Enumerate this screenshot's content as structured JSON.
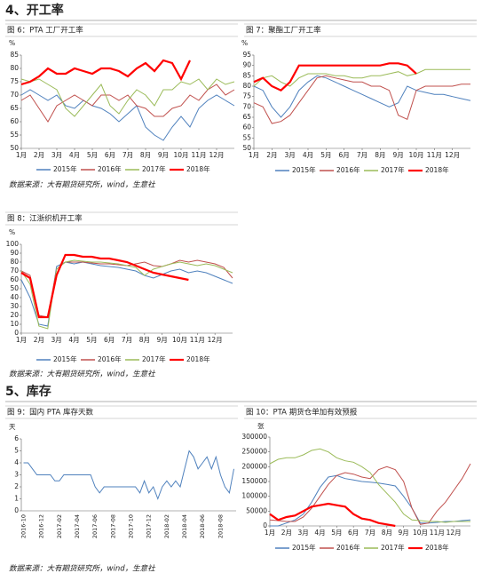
{
  "sections": [
    {
      "heading": "4、开工率"
    },
    {
      "heading": "5、库存"
    }
  ],
  "figures": [
    {
      "title": "图 6：PTA 工厂开工率",
      "source": "数据来源：大有期货研究所，wind，生意社",
      "chart_data": {
        "type": "line",
        "y_label": "%",
        "x": [
          1,
          1.5,
          2,
          2.5,
          3,
          3.5,
          4,
          4.5,
          5,
          5.5,
          6,
          6.5,
          7,
          7.5,
          8,
          8.5,
          9,
          9.5,
          10,
          10.5,
          11,
          11.5,
          12,
          12.5,
          13
        ],
        "xlim": [
          1,
          13
        ],
        "xticks": [
          {
            "value": 1,
            "label": "1月"
          },
          {
            "value": 2,
            "label": "2月"
          },
          {
            "value": 3,
            "label": "3月"
          },
          {
            "value": 4,
            "label": "4月"
          },
          {
            "value": 5,
            "label": "5月"
          },
          {
            "value": 6,
            "label": "6月"
          },
          {
            "value": 7,
            "label": "7月"
          },
          {
            "value": 8,
            "label": "8月"
          },
          {
            "value": 9,
            "label": "9月"
          },
          {
            "value": 10,
            "label": "10月"
          },
          {
            "value": 11,
            "label": "11月"
          },
          {
            "value": 12,
            "label": "12月"
          }
        ],
        "ylim": [
          50,
          85
        ],
        "yticks": [
          50,
          55,
          60,
          65,
          70,
          75,
          80,
          85
        ],
        "series": [
          {
            "name": "2015年",
            "color": "#4f81bd",
            "values": [
              70,
              72,
              70,
              68,
              70,
              66,
              65,
              68,
              66,
              65,
              63,
              60,
              63,
              66,
              58,
              55,
              53,
              58,
              62,
              58,
              65,
              68,
              70,
              68,
              66
            ]
          },
          {
            "name": "2016年",
            "color": "#c0504d",
            "values": [
              68,
              70,
              65,
              60,
              66,
              68,
              70,
              68,
              66,
              70,
              70,
              68,
              70,
              66,
              65,
              62,
              62,
              65,
              66,
              70,
              68,
              72,
              74,
              70,
              72
            ]
          },
          {
            "name": "2017年",
            "color": "#9bbb59",
            "values": [
              76,
              75,
              76,
              74,
              72,
              65,
              62,
              66,
              70,
              74,
              66,
              63,
              68,
              72,
              70,
              66,
              72,
              72,
              75,
              74,
              76,
              72,
              76,
              74,
              75
            ]
          },
          {
            "name": "2018年",
            "color": "#ff0000",
            "values": [
              74,
              75,
              77,
              80,
              78,
              78,
              80,
              79,
              78,
              80,
              80,
              79,
              77,
              80,
              82,
              79,
              83,
              82,
              76,
              83,
              null,
              null,
              null,
              null,
              null
            ]
          }
        ]
      }
    },
    {
      "title": "图 7：聚酯工厂开工率",
      "chart_data": {
        "type": "line",
        "y_label": "%",
        "x": [
          1,
          1.5,
          2,
          2.5,
          3,
          3.5,
          4,
          4.5,
          5,
          5.5,
          6,
          6.5,
          7,
          7.5,
          8,
          8.5,
          9,
          9.5,
          10,
          10.5,
          11,
          11.5,
          12,
          12.5,
          13
        ],
        "xlim": [
          1,
          13
        ],
        "xticks": [
          {
            "value": 1,
            "label": "1月"
          },
          {
            "value": 2,
            "label": "2月"
          },
          {
            "value": 3,
            "label": "3月"
          },
          {
            "value": 4,
            "label": "4月"
          },
          {
            "value": 5,
            "label": "5月"
          },
          {
            "value": 6,
            "label": "6月"
          },
          {
            "value": 7,
            "label": "7月"
          },
          {
            "value": 8,
            "label": "8月"
          },
          {
            "value": 9,
            "label": "9月"
          },
          {
            "value": 10,
            "label": "10月"
          },
          {
            "value": 11,
            "label": "11月"
          },
          {
            "value": 12,
            "label": "12月"
          }
        ],
        "ylim": [
          50,
          95
        ],
        "yticks": [
          50,
          55,
          60,
          65,
          70,
          75,
          80,
          85,
          90,
          95
        ],
        "series": [
          {
            "name": "2015年",
            "color": "#4f81bd",
            "values": [
              80,
              78,
              70,
              65,
              70,
              78,
              82,
              85,
              84,
              82,
              80,
              78,
              76,
              74,
              72,
              70,
              72,
              80,
              78,
              77,
              76,
              76,
              75,
              74,
              73
            ]
          },
          {
            "name": "2016年",
            "color": "#c0504d",
            "values": [
              72,
              70,
              62,
              63,
              66,
              72,
              78,
              84,
              85,
              84,
              83,
              82,
              82,
              80,
              80,
              78,
              66,
              64,
              78,
              80,
              80,
              80,
              80,
              81,
              81
            ]
          },
          {
            "name": "2017年",
            "color": "#9bbb59",
            "values": [
              80,
              84,
              85,
              82,
              80,
              84,
              86,
              86,
              86,
              85,
              85,
              84,
              84,
              85,
              85,
              86,
              87,
              85,
              86,
              88,
              88,
              88,
              88,
              88,
              88
            ]
          },
          {
            "name": "2018年",
            "color": "#ff0000",
            "values": [
              82,
              84,
              80,
              78,
              82,
              90,
              90,
              90,
              90,
              90,
              90,
              90,
              90,
              90,
              90,
              91,
              91,
              90,
              86,
              null,
              null,
              null,
              null,
              null,
              null
            ]
          }
        ]
      }
    },
    {
      "title": "图 8：江浙织机开工率",
      "source": "数据来源：大有期货研究所，wind，生意社",
      "chart_data": {
        "type": "line",
        "y_label": "%",
        "x": [
          1,
          1.5,
          2,
          2.5,
          3,
          3.5,
          4,
          4.5,
          5,
          5.5,
          6,
          6.5,
          7,
          7.5,
          8,
          8.5,
          9,
          9.5,
          10,
          10.5,
          11,
          11.5,
          12,
          12.5,
          13
        ],
        "xlim": [
          1,
          13
        ],
        "xticks": [
          {
            "value": 1,
            "label": "1月"
          },
          {
            "value": 2,
            "label": "2月"
          },
          {
            "value": 3,
            "label": "3月"
          },
          {
            "value": 4,
            "label": "4月"
          },
          {
            "value": 5,
            "label": "5月"
          },
          {
            "value": 6,
            "label": "6月"
          },
          {
            "value": 7,
            "label": "7月"
          },
          {
            "value": 8,
            "label": "8月"
          },
          {
            "value": 9,
            "label": "9月"
          },
          {
            "value": 10,
            "label": "10月"
          },
          {
            "value": 11,
            "label": "11月"
          },
          {
            "value": 12,
            "label": "12月"
          }
        ],
        "ylim": [
          0,
          100
        ],
        "yticks": [
          0,
          10,
          20,
          30,
          40,
          50,
          60,
          70,
          80,
          90,
          100
        ],
        "series": [
          {
            "name": "2015年",
            "color": "#4f81bd",
            "values": [
              60,
              40,
              10,
              8,
              75,
              80,
              78,
              80,
              78,
              76,
              75,
              74,
              72,
              70,
              65,
              62,
              66,
              70,
              72,
              68,
              70,
              68,
              64,
              60,
              56
            ]
          },
          {
            "name": "2016年",
            "color": "#c0504d",
            "values": [
              70,
              65,
              20,
              18,
              72,
              80,
              80,
              80,
              79,
              78,
              78,
              77,
              76,
              78,
              80,
              76,
              75,
              78,
              82,
              80,
              82,
              80,
              78,
              74,
              62
            ]
          },
          {
            "name": "2017年",
            "color": "#9bbb59",
            "values": [
              70,
              55,
              8,
              5,
              72,
              80,
              82,
              81,
              80,
              80,
              79,
              78,
              76,
              74,
              65,
              72,
              75,
              78,
              80,
              78,
              76,
              78,
              76,
              72,
              68
            ]
          },
          {
            "name": "2018年",
            "color": "#ff0000",
            "values": [
              68,
              62,
              18,
              18,
              65,
              88,
              88,
              86,
              86,
              84,
              84,
              82,
              80,
              76,
              72,
              68,
              66,
              64,
              62,
              60,
              null,
              null,
              null,
              null,
              null
            ]
          }
        ]
      }
    },
    {
      "title": "图 9：国内 PTA 库存天数",
      "source": "数据来源：大有期货研究所，wind，生意社",
      "chart_data": {
        "type": "line",
        "y_label": "天",
        "categories": [
          "2016-10",
          null,
          null,
          null,
          "2016-12",
          null,
          null,
          null,
          "2017-02",
          null,
          null,
          null,
          "2017-04",
          null,
          null,
          null,
          "2017-06",
          null,
          null,
          null,
          "2017-08",
          null,
          null,
          null,
          "2017-10",
          null,
          null,
          null,
          "2017-12",
          null,
          null,
          null,
          "2018-02",
          null,
          null,
          null,
          "2018-04",
          null,
          null,
          null,
          "2018-06",
          null,
          null,
          null,
          "2018-08",
          null,
          null,
          null
        ],
        "ylim": [
          0,
          6
        ],
        "yticks": [
          0,
          1,
          2,
          3,
          4,
          5,
          6
        ],
        "series": [
          {
            "name": null,
            "color": "#4f81bd",
            "values": [
              4,
              4,
              3.5,
              3,
              3,
              3,
              3,
              2.5,
              2.5,
              3,
              3,
              3,
              3,
              3,
              3,
              3,
              2,
              1.5,
              2,
              2,
              2,
              2,
              2,
              2,
              2,
              2,
              1.5,
              2.5,
              1.5,
              2,
              1,
              2,
              2.5,
              2,
              2.5,
              2,
              3.5,
              5,
              4.5,
              3.5,
              4,
              4.5,
              3.5,
              4.5,
              3,
              2,
              1.5,
              3.5
            ]
          }
        ]
      }
    },
    {
      "title": "图 10：PTA 期货仓单加有效预报",
      "chart_data": {
        "type": "line",
        "y_label": "张",
        "x": [
          1,
          1.5,
          2,
          2.5,
          3,
          3.5,
          4,
          4.5,
          5,
          5.5,
          6,
          6.5,
          7,
          7.5,
          8,
          8.5,
          9,
          9.5,
          10,
          10.5,
          11,
          11.5,
          12,
          12.5,
          13
        ],
        "xlim": [
          1,
          13
        ],
        "xticks": [
          {
            "value": 1,
            "label": "1月"
          },
          {
            "value": 2,
            "label": "2月"
          },
          {
            "value": 3,
            "label": "3月"
          },
          {
            "value": 4,
            "label": "4月"
          },
          {
            "value": 5,
            "label": "5月"
          },
          {
            "value": 6,
            "label": "6月"
          },
          {
            "value": 7,
            "label": "7月"
          },
          {
            "value": 8,
            "label": "8月"
          },
          {
            "value": 9,
            "label": "9月"
          },
          {
            "value": 10,
            "label": "10月"
          },
          {
            "value": 11,
            "label": "11月"
          },
          {
            "value": 12,
            "label": "12月"
          }
        ],
        "ylim": [
          0,
          300000
        ],
        "yticks": [
          0,
          50000,
          100000,
          150000,
          200000,
          250000,
          300000
        ],
        "series": [
          {
            "name": "2015年",
            "color": "#4f81bd",
            "values": [
              0,
              0,
              10000,
              20000,
              40000,
              80000,
              130000,
              165000,
              170000,
              160000,
              155000,
              150000,
              148000,
              145000,
              140000,
              135000,
              100000,
              60000,
              10000,
              10000,
              12000,
              15000,
              15000,
              18000,
              20000
            ]
          },
          {
            "name": "2016年",
            "color": "#c0504d",
            "values": [
              20000,
              18000,
              15000,
              15000,
              30000,
              60000,
              100000,
              140000,
              170000,
              180000,
              175000,
              165000,
              160000,
              190000,
              200000,
              190000,
              150000,
              60000,
              5000,
              10000,
              50000,
              80000,
              120000,
              160000,
              210000
            ]
          },
          {
            "name": "2017年",
            "color": "#9bbb59",
            "values": [
              210000,
              225000,
              230000,
              230000,
              240000,
              255000,
              260000,
              250000,
              230000,
              220000,
              215000,
              200000,
              180000,
              140000,
              110000,
              80000,
              40000,
              20000,
              18000,
              15000,
              15000,
              12000,
              15000,
              15000,
              15000
            ]
          },
          {
            "name": "2018年",
            "color": "#ff0000",
            "values": [
              40000,
              20000,
              30000,
              35000,
              50000,
              65000,
              70000,
              75000,
              70000,
              65000,
              40000,
              25000,
              20000,
              10000,
              5000,
              0,
              null,
              null,
              null,
              null,
              null,
              null,
              null,
              null,
              null
            ]
          }
        ]
      }
    }
  ]
}
